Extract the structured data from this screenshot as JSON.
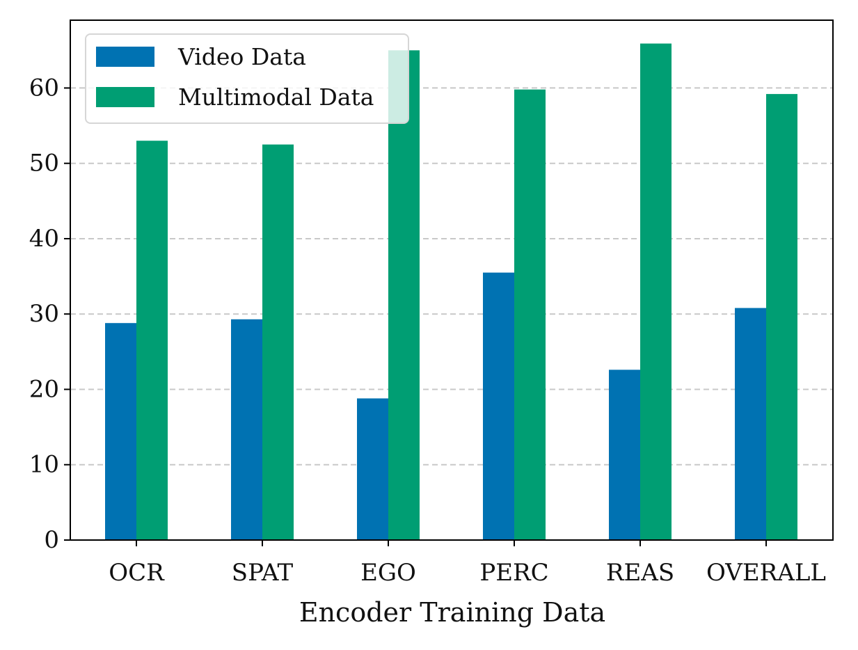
{
  "chart_data": {
    "type": "bar",
    "title": "",
    "xlabel": "Encoder Training Data",
    "ylabel": "",
    "categories": [
      "OCR",
      "SPAT",
      "EGO",
      "PERC",
      "REAS",
      "OVERALL"
    ],
    "series": [
      {
        "name": "Video Data",
        "color": "#0072B2",
        "values": [
          28.8,
          29.3,
          18.8,
          35.5,
          22.6,
          30.8
        ]
      },
      {
        "name": "Multimodal Data",
        "color": "#009E73",
        "values": [
          53.0,
          52.5,
          65.0,
          59.8,
          65.9,
          59.2
        ]
      }
    ],
    "ylim": [
      0,
      69
    ],
    "yticks": [
      0,
      10,
      20,
      30,
      40,
      50,
      60
    ],
    "grid": "horizontal dashed",
    "legend_position": "top-left"
  }
}
